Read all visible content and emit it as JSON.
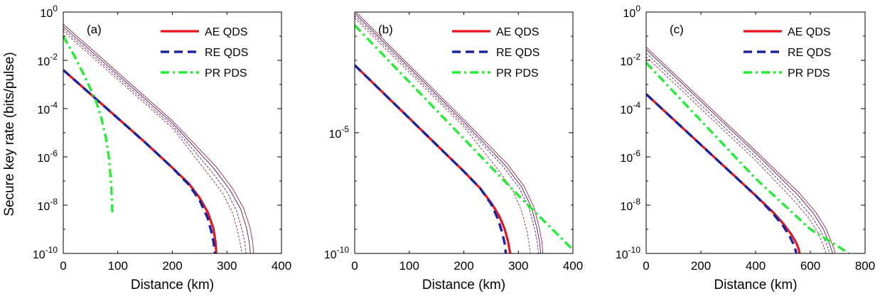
{
  "figure": {
    "ylabel": "Secure key rate (bits/pulse)",
    "colors": {
      "ae": "#e8131b",
      "re": "#1a23a0",
      "pr": "#22ee33",
      "thin_red": "#a0243a",
      "thin_purple": "#4a1a6e"
    }
  },
  "chart_data": [
    {
      "type": "line",
      "panel_label": "(a)",
      "xlabel": "Distance (km)",
      "ylabel": "Secure key rate (bits/pulse)",
      "xlim": [
        0,
        400
      ],
      "xticks": [
        0,
        100,
        200,
        300,
        400
      ],
      "xtick_labels": [
        "0",
        "100",
        "200",
        "300",
        "400"
      ],
      "ylim_log10": [
        -10,
        0
      ],
      "yticks_log10": [
        0,
        -2,
        -4,
        -6,
        -8,
        -10
      ],
      "ytick_labels": [
        {
          "base": "10",
          "exp": "0"
        },
        {
          "base": "10",
          "exp": "-2"
        },
        {
          "base": "10",
          "exp": "-4"
        },
        {
          "base": "10",
          "exp": "-6"
        },
        {
          "base": "10",
          "exp": "-8"
        },
        {
          "base": "10",
          "exp": "-10"
        }
      ],
      "legend": {
        "location": "top-right",
        "entries": [
          "AE QDS",
          "RE QDS",
          "PR PDS"
        ]
      },
      "series": [
        {
          "name": "AE QDS",
          "style": "solid-thick",
          "color": "#e8131b",
          "x": [
            0,
            50,
            100,
            150,
            200,
            230,
            250,
            265,
            275,
            279,
            280.5
          ],
          "log10_y": [
            -2.4,
            -3.4,
            -4.4,
            -5.4,
            -6.45,
            -7.1,
            -7.7,
            -8.3,
            -8.95,
            -9.5,
            -10
          ]
        },
        {
          "name": "RE QDS",
          "style": "dashed-thick",
          "color": "#1a23a0",
          "x": [
            0,
            50,
            100,
            150,
            200,
            230,
            250,
            265,
            272,
            276,
            278
          ],
          "log10_y": [
            -2.4,
            -3.4,
            -4.4,
            -5.4,
            -6.45,
            -7.15,
            -7.8,
            -8.55,
            -9.15,
            -9.6,
            -10
          ]
        },
        {
          "name": "PR PDS",
          "style": "dashdot-thick",
          "color": "#22ee33",
          "x": [
            0,
            20,
            40,
            60,
            70,
            78,
            84,
            88,
            90
          ],
          "log10_y": [
            -1.0,
            -1.8,
            -2.7,
            -3.7,
            -4.4,
            -5.2,
            -6.1,
            -7.2,
            -8.3
          ]
        },
        {
          "name": "thin-1",
          "style": "solid-thin",
          "color": "#a0243a",
          "x": [
            0,
            100,
            200,
            280,
            310,
            330,
            342,
            347,
            349
          ],
          "log10_y": [
            -0.5,
            -2.5,
            -4.5,
            -6.4,
            -7.3,
            -8.1,
            -8.9,
            -9.5,
            -10
          ]
        },
        {
          "name": "thin-2",
          "style": "solid-thin",
          "color": "#4a1a6e",
          "x": [
            0,
            100,
            200,
            275,
            305,
            325,
            336,
            341,
            343
          ],
          "log10_y": [
            -0.6,
            -2.6,
            -4.6,
            -6.45,
            -7.35,
            -8.15,
            -8.95,
            -9.55,
            -10
          ]
        },
        {
          "name": "thin-3",
          "style": "dashed-thin",
          "color": "#4a1a6e",
          "x": [
            0,
            100,
            200,
            270,
            300,
            318,
            328,
            333,
            335
          ],
          "log10_y": [
            -0.7,
            -2.7,
            -4.7,
            -6.55,
            -7.45,
            -8.25,
            -9.05,
            -9.6,
            -10
          ]
        },
        {
          "name": "thin-4",
          "style": "dashed-thin",
          "color": "#a0243a",
          "x": [
            0,
            100,
            200,
            262,
            292,
            310,
            320,
            325,
            327
          ],
          "log10_y": [
            -0.8,
            -2.8,
            -4.8,
            -6.6,
            -7.5,
            -8.3,
            -9.1,
            -9.65,
            -10
          ]
        }
      ]
    },
    {
      "type": "line",
      "panel_label": "(b)",
      "xlabel": "Distance (km)",
      "xlim": [
        0,
        400
      ],
      "xticks": [
        0,
        100,
        200,
        300,
        400
      ],
      "xtick_labels": [
        "0",
        "100",
        "200",
        "300",
        "400"
      ],
      "ylim_log10": [
        -10,
        0
      ],
      "yticks_log10": [
        -5,
        -10
      ],
      "ytick_labels": [
        {
          "base": "10",
          "exp": "-5"
        },
        {
          "base": "10",
          "exp": "-10"
        }
      ],
      "legend": {
        "location": "top-right",
        "entries": [
          "AE QDS",
          "RE QDS",
          "PR PDS"
        ]
      },
      "series": [
        {
          "name": "AE QDS",
          "style": "solid-thick",
          "color": "#e8131b",
          "x": [
            0,
            50,
            100,
            150,
            200,
            230,
            250,
            265,
            275,
            281,
            285
          ],
          "log10_y": [
            -2.2,
            -3.3,
            -4.4,
            -5.5,
            -6.6,
            -7.3,
            -7.9,
            -8.45,
            -9.0,
            -9.5,
            -10
          ]
        },
        {
          "name": "RE QDS",
          "style": "dashed-thick",
          "color": "#1a23a0",
          "x": [
            0,
            50,
            100,
            150,
            200,
            230,
            250,
            262,
            270,
            275,
            277
          ],
          "log10_y": [
            -2.2,
            -3.3,
            -4.4,
            -5.5,
            -6.6,
            -7.3,
            -7.95,
            -8.55,
            -9.1,
            -9.6,
            -10
          ]
        },
        {
          "name": "PR PDS",
          "style": "dashdot-thick",
          "color": "#22ee33",
          "x": [
            0,
            100,
            200,
            300,
            400
          ],
          "log10_y": [
            -0.55,
            -2.9,
            -5.25,
            -7.6,
            -9.85
          ]
        },
        {
          "name": "thin-1",
          "style": "solid-thin",
          "color": "#a0243a",
          "x": [
            0,
            100,
            200,
            280,
            310,
            328,
            338,
            343,
            345
          ],
          "log10_y": [
            0.05,
            -2.2,
            -4.45,
            -6.3,
            -7.2,
            -8.05,
            -8.9,
            -9.5,
            -10
          ]
        },
        {
          "name": "thin-2",
          "style": "solid-thin",
          "color": "#4a1a6e",
          "x": [
            0,
            100,
            200,
            276,
            306,
            324,
            334,
            339,
            341
          ],
          "log10_y": [
            -0.05,
            -2.3,
            -4.55,
            -6.35,
            -7.25,
            -8.1,
            -8.95,
            -9.55,
            -10
          ]
        },
        {
          "name": "thin-3",
          "style": "dashed-thin",
          "color": "#4a1a6e",
          "x": [
            0,
            100,
            200,
            272,
            302,
            320,
            330,
            335,
            337
          ],
          "log10_y": [
            -0.15,
            -2.4,
            -4.65,
            -6.4,
            -7.3,
            -8.15,
            -9.0,
            -9.6,
            -10
          ]
        },
        {
          "name": "thin-4",
          "style": "dashed-thin",
          "color": "#a0243a",
          "x": [
            0,
            100,
            200,
            262,
            290,
            306,
            316,
            320,
            322
          ],
          "log10_y": [
            -0.25,
            -2.5,
            -4.75,
            -6.5,
            -7.4,
            -8.25,
            -9.1,
            -9.65,
            -10
          ]
        }
      ]
    },
    {
      "type": "line",
      "panel_label": "(c)",
      "xlabel": "Distance (km)",
      "xlim": [
        0,
        800
      ],
      "xticks": [
        0,
        200,
        400,
        600,
        800
      ],
      "xtick_labels": [
        "0",
        "200",
        "400",
        "600",
        "800"
      ],
      "ylim_log10": [
        -10,
        0
      ],
      "yticks_log10": [
        0,
        -2,
        -4,
        -6,
        -8,
        -10
      ],
      "ytick_labels": [
        {
          "base": "10",
          "exp": "0"
        },
        {
          "base": "10",
          "exp": "-2"
        },
        {
          "base": "10",
          "exp": "-4"
        },
        {
          "base": "10",
          "exp": "-6"
        },
        {
          "base": "10",
          "exp": "-8"
        },
        {
          "base": "10",
          "exp": "-10"
        }
      ],
      "legend": {
        "location": "top-right",
        "entries": [
          "AE QDS",
          "RE QDS",
          "PR PDS"
        ]
      },
      "series": [
        {
          "name": "AE QDS",
          "style": "solid-thick",
          "color": "#e8131b",
          "x": [
            0,
            100,
            200,
            300,
            400,
            460,
            500,
            530,
            548,
            557,
            561
          ],
          "log10_y": [
            -3.4,
            -4.45,
            -5.5,
            -6.55,
            -7.6,
            -8.25,
            -8.75,
            -9.2,
            -9.55,
            -9.8,
            -10
          ]
        },
        {
          "name": "RE QDS",
          "style": "dashed-thick",
          "color": "#1a23a0",
          "x": [
            0,
            100,
            200,
            300,
            400,
            460,
            500,
            525,
            538,
            545,
            549
          ],
          "log10_y": [
            -3.4,
            -4.45,
            -5.5,
            -6.55,
            -7.6,
            -8.3,
            -8.85,
            -9.3,
            -9.6,
            -9.82,
            -10
          ]
        },
        {
          "name": "PR PDS",
          "style": "dashdot-thick",
          "color": "#22ee33",
          "x": [
            0,
            200,
            400,
            600,
            700,
            740
          ],
          "log10_y": [
            -2.1,
            -4.5,
            -6.9,
            -9.0,
            -9.7,
            -10
          ]
        },
        {
          "name": "thin-1",
          "style": "solid-thin",
          "color": "#a0243a",
          "x": [
            0,
            200,
            400,
            560,
            620,
            656,
            676,
            686,
            690
          ],
          "log10_y": [
            -1.45,
            -3.6,
            -5.75,
            -7.5,
            -8.3,
            -8.95,
            -9.5,
            -9.8,
            -10
          ]
        },
        {
          "name": "thin-2",
          "style": "solid-thin",
          "color": "#4a1a6e",
          "x": [
            0,
            200,
            400,
            552,
            612,
            648,
            668,
            677,
            681
          ],
          "log10_y": [
            -1.55,
            -3.7,
            -5.85,
            -7.55,
            -8.35,
            -9.0,
            -9.55,
            -9.82,
            -10
          ]
        },
        {
          "name": "thin-3",
          "style": "dashed-thin",
          "color": "#4a1a6e",
          "x": [
            0,
            200,
            400,
            545,
            603,
            638,
            657,
            666,
            670
          ],
          "log10_y": [
            -1.7,
            -3.85,
            -6.0,
            -7.65,
            -8.45,
            -9.05,
            -9.55,
            -9.83,
            -10
          ]
        },
        {
          "name": "thin-4",
          "style": "dashed-thin",
          "color": "#a0243a",
          "x": [
            0,
            200,
            400,
            535,
            592,
            626,
            645,
            653,
            657
          ],
          "log10_y": [
            -1.85,
            -4.0,
            -6.15,
            -7.75,
            -8.5,
            -9.1,
            -9.6,
            -9.85,
            -10
          ]
        }
      ]
    }
  ]
}
